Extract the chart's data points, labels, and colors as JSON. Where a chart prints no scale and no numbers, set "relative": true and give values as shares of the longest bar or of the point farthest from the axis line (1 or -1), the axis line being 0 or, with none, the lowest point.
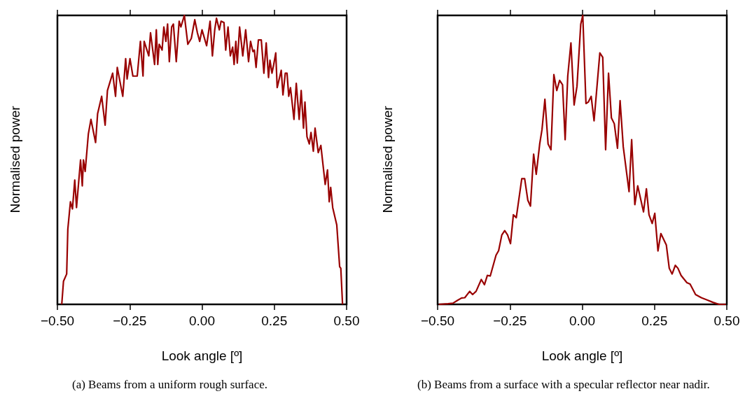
{
  "chart_data": [
    {
      "type": "line",
      "relative": true,
      "xlabel": "Look angle [º]",
      "ylabel": "Normalised power",
      "annotations": [
        "(a) Beams from a uniform rough surface."
      ],
      "xlim": [
        -0.5,
        0.5
      ],
      "xticks": [
        {
          "value": -0.5,
          "label": "−0.50"
        },
        {
          "value": -0.25,
          "label": "−0.25"
        },
        {
          "value": 0,
          "label": "0.00"
        },
        {
          "value": 0.25,
          "label": "0.25"
        },
        {
          "value": 0.5,
          "label": "0.50"
        }
      ],
      "grid": false,
      "marker": "none",
      "line_style": "solid",
      "series": [
        {
          "color": "#990000",
          "x": [
            -0.485,
            -0.479,
            -0.468,
            -0.464,
            -0.455,
            -0.448,
            -0.44,
            -0.434,
            -0.42,
            -0.414,
            -0.41,
            -0.404,
            -0.393,
            -0.384,
            -0.368,
            -0.361,
            -0.347,
            -0.335,
            -0.327,
            -0.309,
            -0.299,
            -0.293,
            -0.274,
            -0.264,
            -0.259,
            -0.249,
            -0.239,
            -0.224,
            -0.213,
            -0.204,
            -0.2,
            -0.184,
            -0.178,
            -0.164,
            -0.158,
            -0.153,
            -0.148,
            -0.138,
            -0.132,
            -0.125,
            -0.119,
            -0.113,
            -0.105,
            -0.099,
            -0.089,
            -0.079,
            -0.073,
            -0.061,
            -0.049,
            -0.037,
            -0.025,
            -0.016,
            -0.008,
            0.0,
            0.016,
            0.028,
            0.036,
            0.044,
            0.05,
            0.06,
            0.066,
            0.076,
            0.082,
            0.09,
            0.098,
            0.106,
            0.111,
            0.117,
            0.122,
            0.13,
            0.141,
            0.151,
            0.161,
            0.168,
            0.176,
            0.181,
            0.187,
            0.195,
            0.205,
            0.214,
            0.222,
            0.23,
            0.235,
            0.242,
            0.248,
            0.255,
            0.26,
            0.274,
            0.28,
            0.288,
            0.294,
            0.3,
            0.306,
            0.318,
            0.326,
            0.336,
            0.343,
            0.351,
            0.356,
            0.363,
            0.371,
            0.377,
            0.385,
            0.391,
            0.402,
            0.411,
            0.426,
            0.434,
            0.44,
            0.445,
            0.452,
            0.466,
            0.476,
            0.48,
            0.486
          ],
          "values": [
            0,
            0.08,
            0.105,
            0.26,
            0.355,
            0.33,
            0.43,
            0.335,
            0.5,
            0.41,
            0.5,
            0.46,
            0.59,
            0.64,
            0.56,
            0.66,
            0.72,
            0.62,
            0.74,
            0.8,
            0.72,
            0.82,
            0.72,
            0.85,
            0.78,
            0.85,
            0.79,
            0.79,
            0.91,
            0.79,
            0.91,
            0.86,
            0.94,
            0.83,
            0.95,
            0.83,
            0.9,
            0.88,
            0.96,
            0.91,
            0.97,
            0.84,
            0.96,
            0.97,
            0.84,
            0.98,
            0.96,
            1.0,
            0.9,
            0.92,
            0.985,
            0.94,
            0.91,
            0.95,
            0.895,
            0.98,
            0.86,
            0.95,
            0.99,
            0.95,
            0.98,
            0.975,
            0.88,
            0.96,
            0.86,
            0.89,
            0.83,
            0.91,
            0.835,
            0.96,
            0.86,
            0.95,
            0.84,
            0.91,
            0.875,
            0.88,
            0.82,
            0.915,
            0.915,
            0.8,
            0.905,
            0.785,
            0.845,
            0.8,
            0.83,
            0.87,
            0.75,
            0.81,
            0.725,
            0.8,
            0.8,
            0.72,
            0.75,
            0.64,
            0.765,
            0.64,
            0.74,
            0.61,
            0.7,
            0.58,
            0.555,
            0.595,
            0.53,
            0.61,
            0.525,
            0.55,
            0.415,
            0.465,
            0.355,
            0.405,
            0.335,
            0.275,
            0.13,
            0.125,
            0
          ]
        }
      ]
    },
    {
      "type": "line",
      "relative": true,
      "xlabel": "Look angle [º]",
      "ylabel": "Normalised power",
      "annotations": [
        "(b) Beams from a surface with a specular reflector near nadir."
      ],
      "xlim": [
        -0.5,
        0.5
      ],
      "xticks": [
        {
          "value": -0.5,
          "label": "−0.50"
        },
        {
          "value": -0.25,
          "label": "−0.25"
        },
        {
          "value": 0,
          "label": "0.00"
        },
        {
          "value": 0.25,
          "label": "0.25"
        },
        {
          "value": 0.5,
          "label": "0.50"
        }
      ],
      "grid": false,
      "marker": "none",
      "line_style": "solid",
      "series": [
        {
          "color": "#990000",
          "x": [
            -0.496,
            -0.464,
            -0.447,
            -0.431,
            -0.417,
            -0.406,
            -0.389,
            -0.379,
            -0.367,
            -0.349,
            -0.338,
            -0.328,
            -0.318,
            -0.298,
            -0.289,
            -0.278,
            -0.268,
            -0.258,
            -0.248,
            -0.238,
            -0.228,
            -0.209,
            -0.199,
            -0.188,
            -0.179,
            -0.168,
            -0.159,
            -0.147,
            -0.139,
            -0.129,
            -0.118,
            -0.108,
            -0.098,
            -0.088,
            -0.078,
            -0.068,
            -0.059,
            -0.05,
            -0.039,
            -0.028,
            -0.018,
            -0.005,
            0.002,
            0.013,
            0.021,
            0.031,
            0.041,
            0.061,
            0.071,
            0.081,
            0.091,
            0.101,
            0.111,
            0.122,
            0.131,
            0.142,
            0.162,
            0.171,
            0.182,
            0.192,
            0.212,
            0.222,
            0.231,
            0.242,
            0.251,
            0.262,
            0.272,
            0.291,
            0.301,
            0.311,
            0.322,
            0.331,
            0.342,
            0.362,
            0.373,
            0.381,
            0.392,
            0.412,
            0.432,
            0.452,
            0.473,
            0.497
          ],
          "values": [
            0,
            0.002,
            0.004,
            0.014,
            0.022,
            0.023,
            0.045,
            0.034,
            0.045,
            0.086,
            0.068,
            0.1,
            0.098,
            0.17,
            0.186,
            0.24,
            0.255,
            0.24,
            0.21,
            0.31,
            0.3,
            0.435,
            0.435,
            0.36,
            0.34,
            0.52,
            0.45,
            0.555,
            0.605,
            0.71,
            0.555,
            0.535,
            0.795,
            0.74,
            0.775,
            0.76,
            0.57,
            0.79,
            0.905,
            0.69,
            0.755,
            0.97,
            1.0,
            0.695,
            0.7,
            0.72,
            0.635,
            0.87,
            0.855,
            0.535,
            0.8,
            0.645,
            0.625,
            0.54,
            0.705,
            0.545,
            0.39,
            0.57,
            0.345,
            0.41,
            0.32,
            0.4,
            0.31,
            0.28,
            0.315,
            0.185,
            0.245,
            0.205,
            0.125,
            0.105,
            0.135,
            0.125,
            0.1,
            0.075,
            0.07,
            0.055,
            0.034,
            0.023,
            0.015,
            0.007,
            0,
            0
          ]
        }
      ]
    }
  ]
}
